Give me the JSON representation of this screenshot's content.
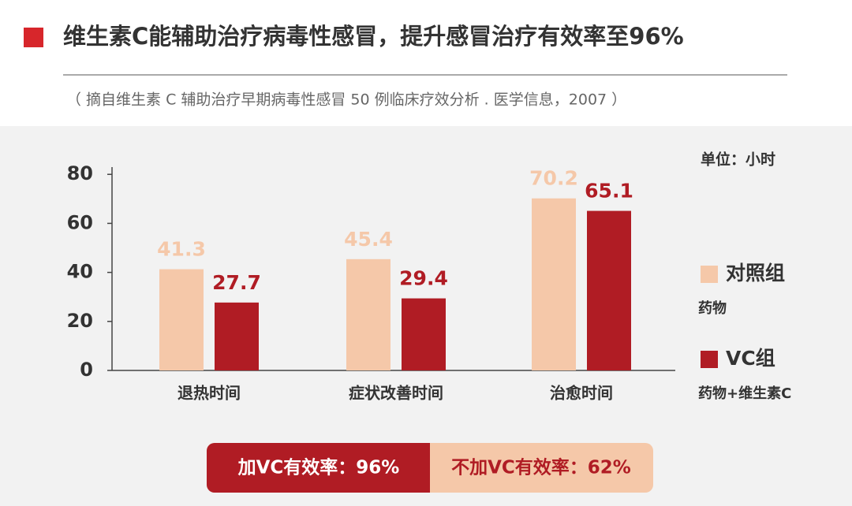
{
  "chart_data": {
    "type": "bar",
    "title": "维生素C能辅助治疗病毒性感冒，提升感冒治疗有效率至96%",
    "subtitle": "（ 摘自维生素 C 辅助治疗早期病毒性感冒 50 例临床疗效分析 . 医学信息，2007 ）",
    "unit": "单位：小时",
    "categories": [
      "退热时间",
      "症状改善时间",
      "治愈时间"
    ],
    "series": [
      {
        "name": "对照组",
        "description": "药物",
        "color": "#f5c8a9",
        "values": [
          41.3,
          45.4,
          70.2
        ]
      },
      {
        "name": "VC组",
        "description": "药物+维生素C",
        "color": "#b01c24",
        "values": [
          27.7,
          29.4,
          65.1
        ]
      }
    ],
    "ylim": [
      0,
      82
    ],
    "yticks": [
      0,
      20,
      40,
      60,
      80
    ],
    "summary": [
      "加VC有效率：96%",
      "不加VC有效率：62%"
    ]
  }
}
